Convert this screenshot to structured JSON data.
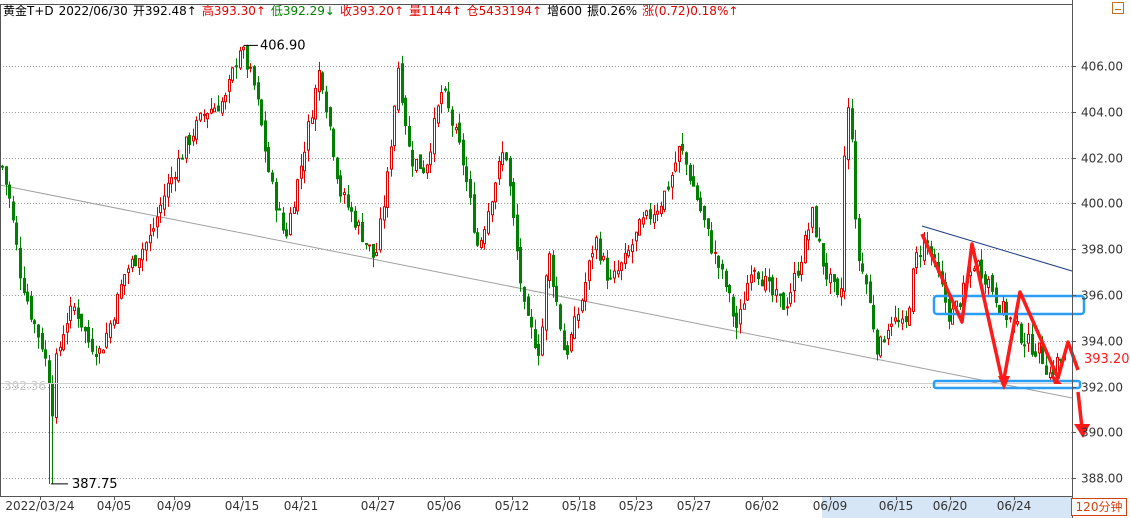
{
  "header": {
    "symbol": "黄金T+D",
    "date": "2022/06/30",
    "open": "开392.48↑",
    "high": "高393.30↑",
    "low": "低392.29↓",
    "close": "收393.20↑",
    "volume": "量1144↑",
    "position": "仓5433194↑",
    "increase": "增600",
    "amplitude": "振0.26%",
    "change": "涨(0.72)0.18%↑"
  },
  "period": "120分钟",
  "colors": {
    "up": "#e00000",
    "down": "#008000",
    "annotation": "#ff1a1a",
    "box": "#2a9df4"
  },
  "chart_data": {
    "type": "candlestick",
    "ylim": [
      387.2,
      407.8
    ],
    "yticks": [
      "406.00",
      "404.00",
      "402.00",
      "400.00",
      "398.00",
      "396.00",
      "394.00",
      "392.00",
      "390.00",
      "388.00"
    ],
    "xticks": [
      "2022/03/24",
      "04/05",
      "04/09",
      "04/15",
      "04/21",
      "04/27",
      "05/06",
      "05/12",
      "05/18",
      "05/23",
      "05/27",
      "06/02",
      "06/09",
      "06/15",
      "06/20",
      "06/24"
    ],
    "annotations": {
      "high_label": "406.90",
      "low_label": "387.75",
      "last_price": "393.20",
      "left_price": "392.36"
    },
    "price_anchors": [
      [
        0,
        402.0
      ],
      [
        10,
        400.0
      ],
      [
        20,
        397.0
      ],
      [
        32,
        395.0
      ],
      [
        42,
        393.8
      ],
      [
        50,
        392.2
      ],
      [
        51,
        387.75
      ],
      [
        53,
        392.5
      ],
      [
        65,
        394.8
      ],
      [
        75,
        395.5
      ],
      [
        88,
        394.0
      ],
      [
        100,
        393.5
      ],
      [
        112,
        395.0
      ],
      [
        125,
        397.0
      ],
      [
        150,
        398.5
      ],
      [
        165,
        400.5
      ],
      [
        185,
        402.5
      ],
      [
        205,
        404.0
      ],
      [
        225,
        404.5
      ],
      [
        240,
        406.9
      ],
      [
        255,
        405.0
      ],
      [
        270,
        401.0
      ],
      [
        285,
        398.5
      ],
      [
        300,
        401.5
      ],
      [
        320,
        406.0
      ],
      [
        340,
        400.5
      ],
      [
        358,
        399.0
      ],
      [
        375,
        397.5
      ],
      [
        387,
        401.0
      ],
      [
        398,
        406.0
      ],
      [
        410,
        402.0
      ],
      [
        425,
        401.5
      ],
      [
        442,
        405.0
      ],
      [
        462,
        402.0
      ],
      [
        478,
        398.0
      ],
      [
        495,
        401.0
      ],
      [
        505,
        402.5
      ],
      [
        515,
        398.5
      ],
      [
        525,
        395.0
      ],
      [
        540,
        393.5
      ],
      [
        548,
        398.0
      ],
      [
        565,
        393.3
      ],
      [
        580,
        395.5
      ],
      [
        595,
        398.5
      ],
      [
        610,
        396.5
      ],
      [
        625,
        397.5
      ],
      [
        640,
        399.0
      ],
      [
        660,
        400.0
      ],
      [
        670,
        401.0
      ],
      [
        680,
        402.5
      ],
      [
        695,
        400.5
      ],
      [
        712,
        398.0
      ],
      [
        725,
        396.5
      ],
      [
        737,
        394.5
      ],
      [
        752,
        397.5
      ],
      [
        772,
        396.0
      ],
      [
        785,
        395.5
      ],
      [
        800,
        397.5
      ],
      [
        812,
        399.5
      ],
      [
        825,
        397.0
      ],
      [
        836,
        396.0
      ],
      [
        840,
        395.0
      ],
      [
        846,
        404.5
      ],
      [
        852,
        403.0
      ],
      [
        856,
        398.0
      ],
      [
        866,
        396.5
      ],
      [
        878,
        393.5
      ],
      [
        890,
        395.0
      ],
      [
        905,
        394.5
      ],
      [
        915,
        397.5
      ],
      [
        925,
        398.5
      ],
      [
        940,
        396.5
      ],
      [
        950,
        395.0
      ],
      [
        962,
        396.0
      ],
      [
        975,
        397.5
      ],
      [
        990,
        396.5
      ],
      [
        1000,
        395.5
      ],
      [
        1012,
        394.8
      ],
      [
        1025,
        394.0
      ],
      [
        1040,
        393.5
      ],
      [
        1050,
        392.5
      ],
      [
        1058,
        393.2
      ],
      [
        1066,
        393.2
      ]
    ]
  }
}
